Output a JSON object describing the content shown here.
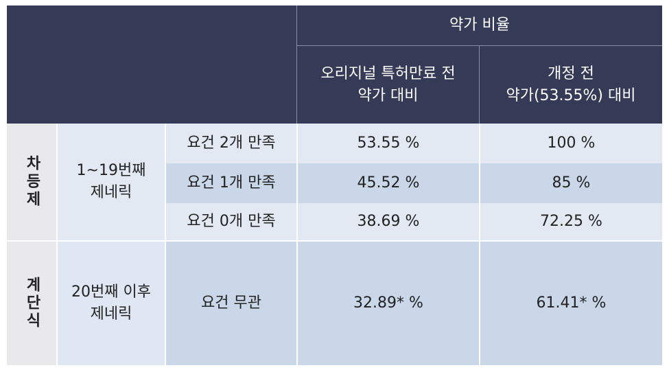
{
  "table": {
    "header": {
      "group": "약가 비율",
      "columns": [
        {
          "lines": [
            "오리지널 특허만료 전",
            "약가 대비"
          ]
        },
        {
          "lines": [
            "개정 전",
            "약가(53.55%) 대비"
          ]
        }
      ]
    },
    "groups": [
      {
        "system": "차등제",
        "target": [
          "1~19번째",
          "제네릭"
        ],
        "rows": [
          [
            "요건 2개 만족",
            "53.55 %",
            "100 %"
          ],
          [
            "요건 1개 만족",
            "45.52 %",
            "85 %"
          ],
          [
            "요건 0개 만족",
            "38.69 %",
            "72.25 %"
          ]
        ]
      },
      {
        "system": "계단식",
        "target": [
          "20번째 이후",
          "제네릭"
        ],
        "rows": [
          [
            "요건 무관",
            "32.89* %",
            "61.41* %"
          ]
        ]
      }
    ]
  }
}
